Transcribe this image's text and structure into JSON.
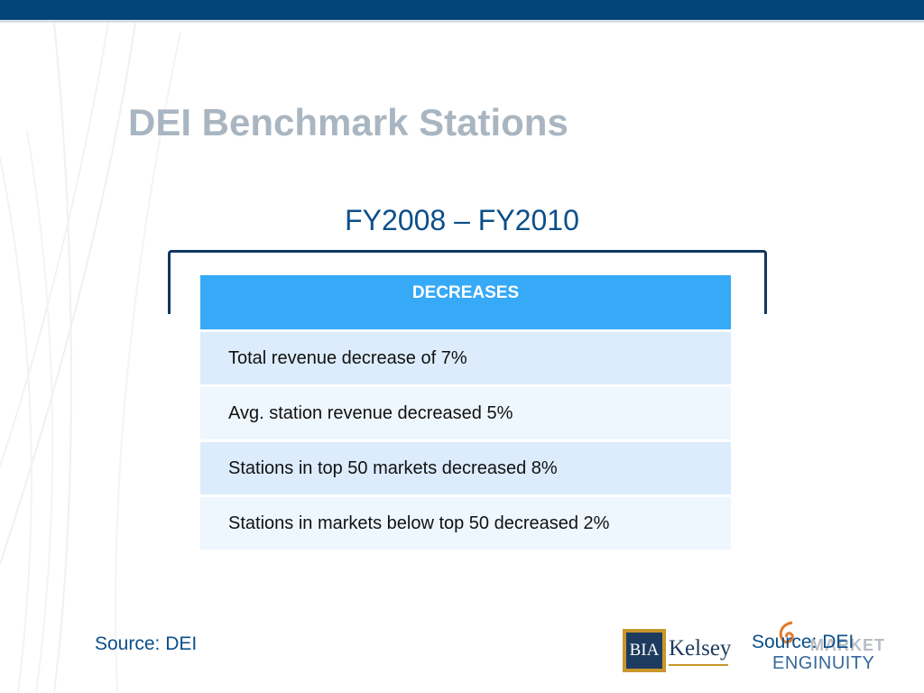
{
  "slide": {
    "title": "DEI Benchmark Stations",
    "subtitle": "FY2008 – FY2010"
  },
  "table": {
    "header": "DECREASES",
    "rows": [
      "Total revenue decrease of 7%",
      "Avg. station revenue decreased 5%",
      "Stations in top 50 markets decreased 8%",
      "Stations in markets below top 50 decreased 2%"
    ]
  },
  "footer": {
    "source_left": "Source: DEI",
    "source_right": "Source: DEI"
  },
  "logos": {
    "bia_kelsey": {
      "box_text": "BIA",
      "name": "Kelsey"
    },
    "market_enginuity": {
      "line1": "MARKET",
      "line2": "ENGINUITY"
    }
  },
  "colors": {
    "top_bar": "#02457a",
    "title": "#a9b6c1",
    "subtitle": "#0b4f8a",
    "table_header": "#36a9f7",
    "row_odd": "#dcecfc",
    "row_even": "#eef6fe"
  }
}
